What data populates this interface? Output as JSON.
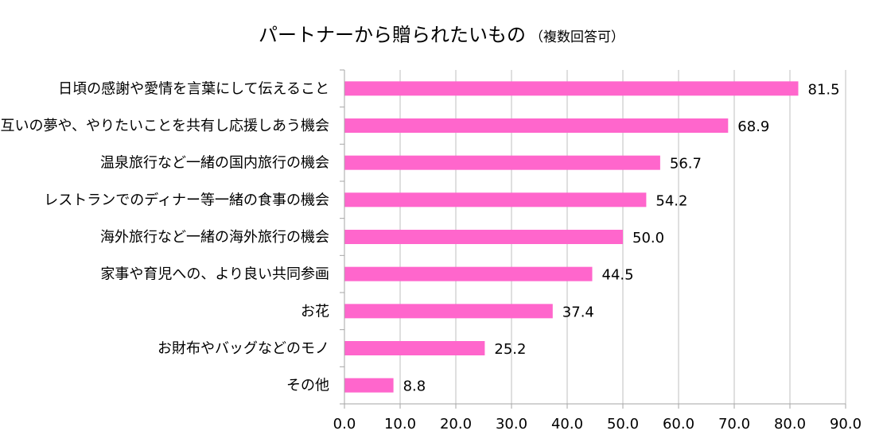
{
  "chart_data": {
    "type": "bar",
    "orientation": "horizontal",
    "title": "パートナーから贈られたいもの",
    "subtitle": "（複数回答可）",
    "categories": [
      "日頃の感謝や愛情を言葉にして伝えること",
      "互いの夢や、やりたいことを共有し応援しあう機会",
      "温泉旅行など一緒の国内旅行の機会",
      "レストランでのディナー等一緒の食事の機会",
      "海外旅行など一緒の海外旅行の機会",
      "家事や育児への、より良い共同参画",
      "お花",
      "お財布やバッグなどのモノ",
      "その他"
    ],
    "values": [
      81.5,
      68.9,
      56.7,
      54.2,
      50.0,
      44.5,
      37.4,
      25.2,
      8.8
    ],
    "value_labels": [
      "81.5",
      "68.9",
      "56.7",
      "54.2",
      "50.0",
      "44.5",
      "37.4",
      "25.2",
      "8.8"
    ],
    "xlim": [
      0,
      90
    ],
    "xticks": [
      0,
      10,
      20,
      30,
      40,
      50,
      60,
      70,
      80,
      90
    ],
    "xtick_labels": [
      "0.0",
      "10.0",
      "20.0",
      "30.0",
      "40.0",
      "50.0",
      "60.0",
      "70.0",
      "80.0",
      "90.0"
    ],
    "grid": "vertical",
    "legend": "none",
    "colors": {
      "bar": "#ff66cc",
      "grid": "#bfbfbf",
      "axis": "#a6a6a6",
      "text": "#000000"
    }
  }
}
